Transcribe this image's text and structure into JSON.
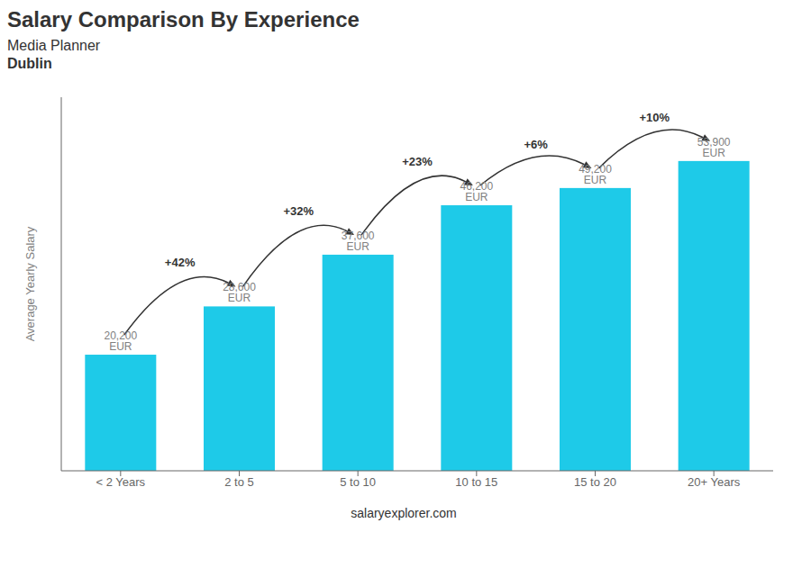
{
  "chart_data": {
    "type": "bar",
    "title": "Salary Comparison By Experience",
    "subtitles": [
      "Media Planner",
      "Dublin"
    ],
    "ylabel": "Average Yearly Salary",
    "footer": "salaryexplorer.com",
    "categories": [
      "< 2 Years",
      "2 to 5",
      "5 to 10",
      "10 to 15",
      "15 to 20",
      "20+ Years"
    ],
    "values": [
      20200,
      28600,
      37600,
      46200,
      49200,
      53900
    ],
    "value_labels": [
      "20,200 EUR",
      "28,600 EUR",
      "37,600 EUR",
      "46,200 EUR",
      "49,200 EUR",
      "53,900 EUR"
    ],
    "data_labels": true,
    "color": "#1ecae8",
    "annotations": [
      {
        "from": "< 2 Years",
        "to": "2 to 5",
        "text": "+42%"
      },
      {
        "from": "2 to 5",
        "to": "5 to 10",
        "text": "+32%"
      },
      {
        "from": "5 to 10",
        "to": "10 to 15",
        "text": "+23%"
      },
      {
        "from": "10 to 15",
        "to": "15 to 20",
        "text": "+6%"
      },
      {
        "from": "15 to 20",
        "to": "20+ Years",
        "text": "+10%"
      }
    ],
    "ylim": [
      0,
      65000
    ],
    "tick_labels": "x",
    "grid": false
  }
}
